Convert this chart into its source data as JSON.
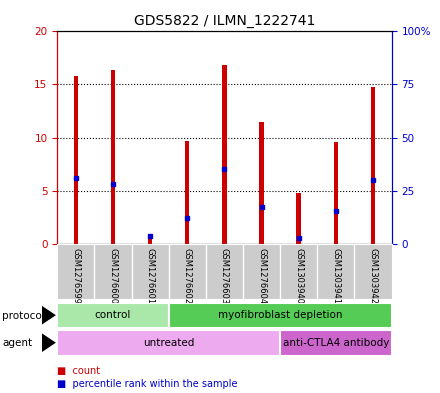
{
  "title": "GDS5822 / ILMN_1222741",
  "samples": [
    "GSM1276599",
    "GSM1276600",
    "GSM1276601",
    "GSM1276602",
    "GSM1276603",
    "GSM1276604",
    "GSM1303940",
    "GSM1303941",
    "GSM1303942"
  ],
  "counts": [
    15.8,
    16.4,
    0.7,
    9.7,
    16.8,
    11.5,
    4.8,
    9.6,
    14.8
  ],
  "percentiles": [
    31.0,
    28.0,
    3.5,
    12.0,
    35.0,
    17.5,
    2.5,
    15.5,
    30.0
  ],
  "ylim_left": [
    0,
    20
  ],
  "ylim_right": [
    0,
    100
  ],
  "yticks_left": [
    0,
    5,
    10,
    15,
    20
  ],
  "yticks_right": [
    0,
    25,
    50,
    75,
    100
  ],
  "ytick_labels_right": [
    "0",
    "25",
    "50",
    "75",
    "100%"
  ],
  "ytick_labels_left": [
    "0",
    "5",
    "10",
    "15",
    "20"
  ],
  "bar_color": "#cc0000",
  "dot_color": "#0000cc",
  "grid_color": "black",
  "bg_color": "#ffffff",
  "protocol_groups": [
    {
      "label": "control",
      "start": 0,
      "end": 3,
      "color": "#aae8aa"
    },
    {
      "label": "myofibroblast depletion",
      "start": 3,
      "end": 9,
      "color": "#55cc55"
    }
  ],
  "agent_groups": [
    {
      "label": "untreated",
      "start": 0,
      "end": 6,
      "color": "#eeaaee"
    },
    {
      "label": "anti-CTLA4 antibody",
      "start": 6,
      "end": 9,
      "color": "#cc66cc"
    }
  ],
  "protocol_label": "protocol",
  "agent_label": "agent",
  "left_axis_color": "#cc0000",
  "right_axis_color": "#0000cc",
  "bar_width": 0.12,
  "count_legend": "count",
  "percentile_legend": "percentile rank within the sample",
  "font_size": 7.5,
  "title_font_size": 10
}
